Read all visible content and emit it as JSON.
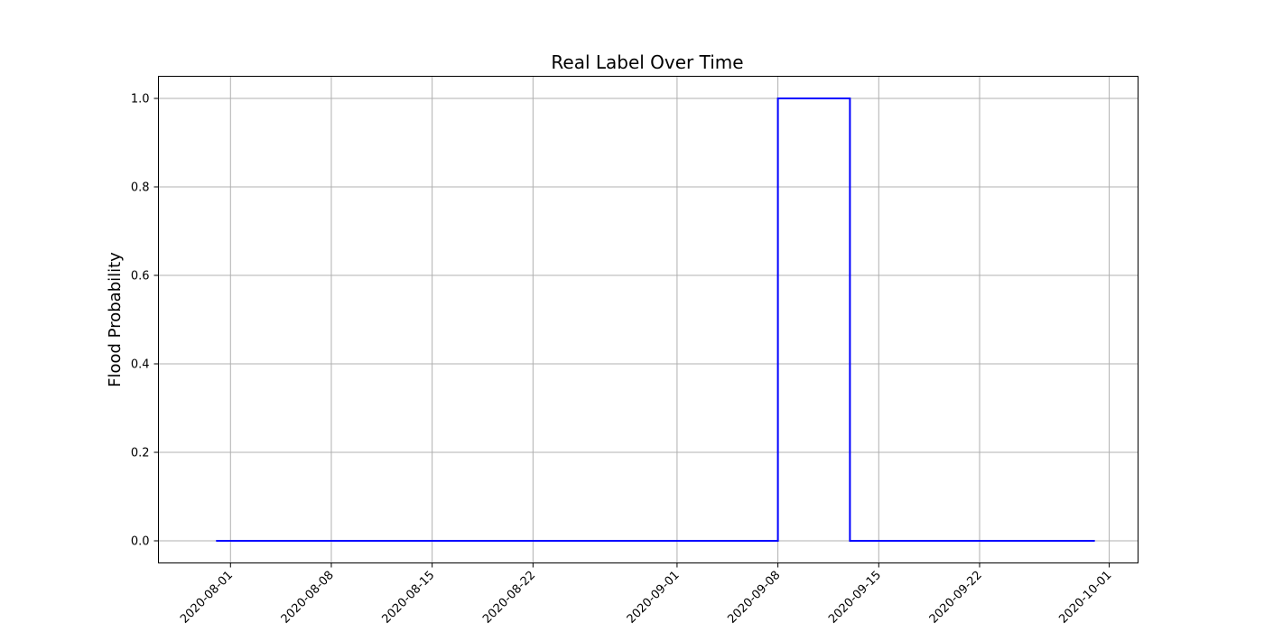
{
  "chart_data": {
    "type": "line",
    "title": "Real Label Over Time",
    "xlabel": "",
    "ylabel": "Flood Probability",
    "x_type": "date",
    "xlim": [
      "2020-07-27",
      "2020-10-03"
    ],
    "ylim": [
      -0.05,
      1.05
    ],
    "x_ticks": [
      "2020-08-01",
      "2020-08-08",
      "2020-08-15",
      "2020-08-22",
      "2020-09-01",
      "2020-09-08",
      "2020-09-15",
      "2020-09-22",
      "2020-10-01"
    ],
    "y_ticks": [
      0.0,
      0.2,
      0.4,
      0.6,
      0.8,
      1.0
    ],
    "y_tick_labels": [
      "0.0",
      "0.2",
      "0.4",
      "0.6",
      "0.8",
      "1.0"
    ],
    "grid": true,
    "series": [
      {
        "color": "#0000ff",
        "points": [
          {
            "x": "2020-07-31",
            "y": 0
          },
          {
            "x": "2020-09-08",
            "y": 0
          },
          {
            "x": "2020-09-08",
            "y": 1
          },
          {
            "x": "2020-09-13",
            "y": 1
          },
          {
            "x": "2020-09-13",
            "y": 0
          },
          {
            "x": "2020-09-30",
            "y": 0
          }
        ]
      }
    ]
  }
}
